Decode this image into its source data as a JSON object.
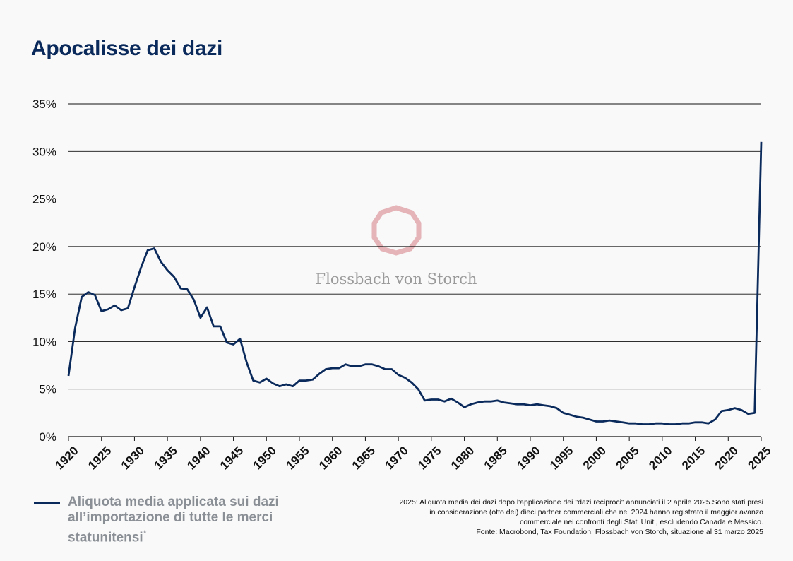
{
  "title": "Apocalisse dei dazi",
  "watermark": "Flossbach von Storch",
  "legend": {
    "label": "Aliquota media applicata sui dazi all’importazione di tutte le merci statunitensi",
    "marker": "*"
  },
  "notes": [
    "2025: Aliquota media dei dazi dopo l'applicazione dei \"dazi reciproci\" annunciati il 2 aprile 2025.Sono stati presi",
    "in considerazione (otto dei) dieci partner commerciali che nel 2024 hanno registrato il maggior avanzo",
    "commerciale nei confronti degli Stati Uniti, escludendo Canada e Messico.",
    "Fonte: Macrobond, Tax Foundation, Flossbach von Storch, situazione al 31 marzo 2025"
  ],
  "colors": {
    "line": "#0b2a5c",
    "title": "#0b2a5c",
    "watermark_logo": "#e4b4b8",
    "background": "#f9f9f9"
  },
  "chart_data": {
    "type": "line",
    "ylim": [
      0,
      35
    ],
    "xlim": [
      1920,
      2025
    ],
    "y_ticks": [
      "0%",
      "5%",
      "10%",
      "15%",
      "20%",
      "25%",
      "30%",
      "35%"
    ],
    "y_tick_values": [
      0,
      5,
      10,
      15,
      20,
      25,
      30,
      35
    ],
    "x_ticks": [
      "1920",
      "1925",
      "1930",
      "1935",
      "1940",
      "1945",
      "1950",
      "1955",
      "1960",
      "1965",
      "1970",
      "1975",
      "1980",
      "1985",
      "1990",
      "1995",
      "2000",
      "2005",
      "2010",
      "2015",
      "2020",
      "2025"
    ],
    "x_tick_values": [
      1920,
      1925,
      1930,
      1935,
      1940,
      1945,
      1950,
      1955,
      1960,
      1965,
      1970,
      1975,
      1980,
      1985,
      1990,
      1995,
      2000,
      2005,
      2010,
      2015,
      2020,
      2025
    ],
    "grid": true,
    "series": [
      {
        "name": "Aliquota media applicata sui dazi all’importazione di tutte le merci statunitensi",
        "x": [
          1920,
          1921,
          1922,
          1923,
          1924,
          1925,
          1926,
          1927,
          1928,
          1929,
          1930,
          1931,
          1932,
          1933,
          1934,
          1935,
          1936,
          1937,
          1938,
          1939,
          1940,
          1941,
          1942,
          1943,
          1944,
          1945,
          1946,
          1947,
          1948,
          1949,
          1950,
          1951,
          1952,
          1953,
          1954,
          1955,
          1956,
          1957,
          1958,
          1959,
          1960,
          1961,
          1962,
          1963,
          1964,
          1965,
          1966,
          1967,
          1968,
          1969,
          1970,
          1971,
          1972,
          1973,
          1974,
          1975,
          1976,
          1977,
          1978,
          1979,
          1980,
          1981,
          1982,
          1983,
          1984,
          1985,
          1986,
          1987,
          1988,
          1989,
          1990,
          1991,
          1992,
          1993,
          1994,
          1995,
          1996,
          1997,
          1998,
          1999,
          2000,
          2001,
          2002,
          2003,
          2004,
          2005,
          2006,
          2007,
          2008,
          2009,
          2010,
          2011,
          2012,
          2013,
          2014,
          2015,
          2016,
          2017,
          2018,
          2019,
          2020,
          2021,
          2022,
          2023,
          2024,
          2025
        ],
        "y": [
          6.4,
          11.4,
          14.7,
          15.2,
          14.9,
          13.2,
          13.4,
          13.8,
          13.3,
          13.5,
          15.7,
          17.8,
          19.6,
          19.8,
          18.4,
          17.5,
          16.8,
          15.6,
          15.5,
          14.4,
          12.5,
          13.6,
          11.6,
          11.6,
          9.9,
          9.7,
          10.3,
          7.8,
          5.9,
          5.7,
          6.1,
          5.6,
          5.3,
          5.5,
          5.3,
          5.9,
          5.9,
          6.0,
          6.6,
          7.1,
          7.2,
          7.2,
          7.6,
          7.4,
          7.4,
          7.6,
          7.6,
          7.4,
          7.1,
          7.1,
          6.5,
          6.2,
          5.7,
          5.0,
          3.8,
          3.9,
          3.9,
          3.7,
          4.0,
          3.6,
          3.1,
          3.4,
          3.6,
          3.7,
          3.7,
          3.8,
          3.6,
          3.5,
          3.4,
          3.4,
          3.3,
          3.4,
          3.3,
          3.2,
          3.0,
          2.5,
          2.3,
          2.1,
          2.0,
          1.8,
          1.6,
          1.6,
          1.7,
          1.6,
          1.5,
          1.4,
          1.4,
          1.3,
          1.3,
          1.4,
          1.4,
          1.3,
          1.3,
          1.4,
          1.4,
          1.5,
          1.5,
          1.4,
          1.8,
          2.7,
          2.8,
          3.0,
          2.8,
          2.4,
          2.5,
          31.0
        ]
      }
    ]
  }
}
